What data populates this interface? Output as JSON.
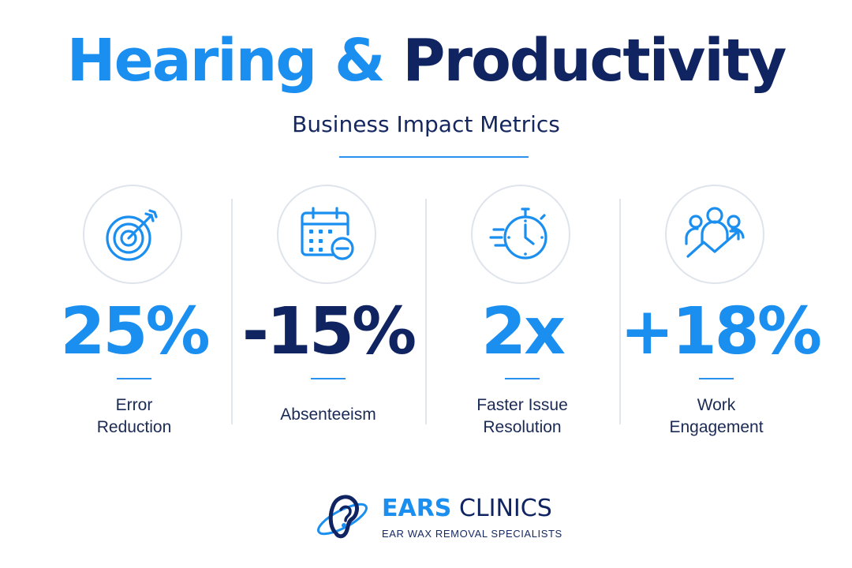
{
  "header": {
    "title_part_a": "Hearing & ",
    "title_part_b": "Productivity",
    "subtitle": "Business Impact Metrics"
  },
  "metrics": [
    {
      "icon": "target-icon",
      "value": "25%",
      "label_line_1": "Error",
      "label_line_2": "Reduction",
      "tone": "light"
    },
    {
      "icon": "calendar-minus-icon",
      "value": "-15%",
      "label_line_1": "Absenteeism",
      "label_line_2": "",
      "tone": "dark"
    },
    {
      "icon": "stopwatch-icon",
      "value": "2x",
      "label_line_1": "Faster Issue",
      "label_line_2": "Resolution",
      "tone": "light"
    },
    {
      "icon": "team-growth-icon",
      "value": "+18%",
      "label_line_1": "Work",
      "label_line_2": "Engagement",
      "tone": "light"
    }
  ],
  "brand": {
    "name_part_a": "EARS",
    "name_part_b": " CLINICS",
    "tagline": "EAR WAX REMOVAL SPECIALISTS",
    "logo_icon": "ear-logo-icon"
  },
  "colors": {
    "accent": "#1b8ff0",
    "navy": "#0f2461",
    "divider": "#e1e6ee"
  }
}
